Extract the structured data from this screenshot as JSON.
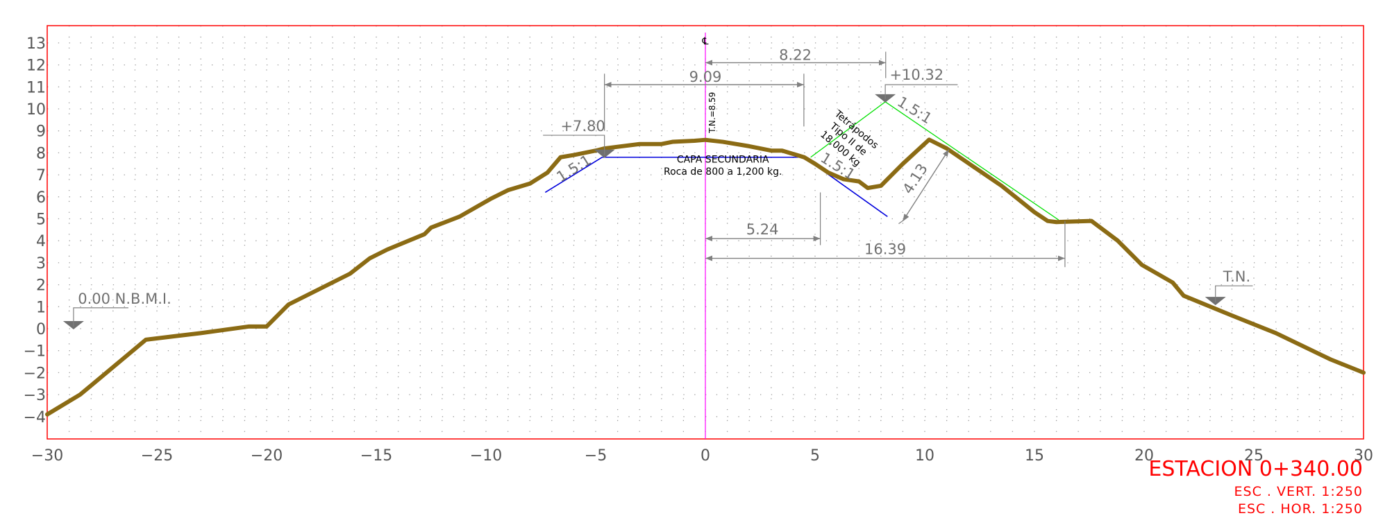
{
  "chart_data": {
    "type": "cross-section",
    "xlim": [
      -30,
      30
    ],
    "ylim": [
      -5,
      14
    ],
    "x_ticks": [
      "−30",
      "−25",
      "−20",
      "−15",
      "−10",
      "−5",
      "0",
      "5",
      "10",
      "15",
      "20",
      "25",
      "30"
    ],
    "y_ticks": [
      "13",
      "12",
      "11",
      "10",
      "9",
      "8",
      "7",
      "6",
      "5",
      "4",
      "3",
      "2",
      "1",
      "0",
      "−1",
      "−2",
      "−3",
      "−4"
    ],
    "y_tick_values": [
      13,
      12,
      11,
      10,
      9,
      8,
      7,
      6,
      5,
      4,
      3,
      2,
      1,
      0,
      -1,
      -2,
      -3,
      -4
    ],
    "grid": "dotted",
    "terrain": [
      [
        -30,
        -3.9
      ],
      [
        -28.5,
        -3.0
      ],
      [
        -25.5,
        -0.5
      ],
      [
        -23,
        -0.2
      ],
      [
        -20.8,
        0.1
      ],
      [
        -20,
        0.1
      ],
      [
        -19,
        1.1
      ],
      [
        -16.2,
        2.5
      ],
      [
        -15.3,
        3.2
      ],
      [
        -14.5,
        3.6
      ],
      [
        -12.8,
        4.3
      ],
      [
        -12.5,
        4.6
      ],
      [
        -11.2,
        5.1
      ],
      [
        -9.8,
        5.9
      ],
      [
        -9,
        6.3
      ],
      [
        -8,
        6.6
      ],
      [
        -7.2,
        7.1
      ],
      [
        -6.6,
        7.8
      ],
      [
        -6,
        7.9
      ],
      [
        -5,
        8.1
      ],
      [
        -4.6,
        8.2
      ],
      [
        -3,
        8.4
      ],
      [
        -2,
        8.4
      ],
      [
        -1.5,
        8.5
      ],
      [
        -0.5,
        8.55
      ],
      [
        0,
        8.59
      ],
      [
        0.8,
        8.5
      ],
      [
        2,
        8.3
      ],
      [
        3,
        8.1
      ],
      [
        3.5,
        8.1
      ],
      [
        4.5,
        7.8
      ],
      [
        5,
        7.5
      ],
      [
        5.6,
        7.1
      ],
      [
        6.3,
        6.8
      ],
      [
        7,
        6.7
      ],
      [
        7.4,
        6.4
      ],
      [
        8,
        6.5
      ],
      [
        9,
        7.5
      ],
      [
        10.2,
        8.6
      ],
      [
        11,
        8.2
      ],
      [
        13.5,
        6.5
      ],
      [
        15,
        5.3
      ],
      [
        15.6,
        4.9
      ],
      [
        16,
        4.85
      ],
      [
        17.6,
        4.9
      ],
      [
        18.8,
        4.0
      ],
      [
        19.9,
        2.9
      ],
      [
        21.3,
        2.1
      ],
      [
        21.8,
        1.5
      ],
      [
        24,
        0.6
      ],
      [
        26,
        -0.2
      ],
      [
        28.5,
        -1.4
      ],
      [
        30,
        -2.0
      ]
    ],
    "capa_secundaria": {
      "x": [
        -4.7,
        4.5
      ],
      "elevation": 7.8,
      "slope_ext_left": [
        -7.3,
        6.2
      ],
      "slope_ext_right": [
        8.3,
        5.1
      ]
    },
    "tetrapodos_outline": [
      [
        4.8,
        7.8
      ],
      [
        8.2,
        10.32
      ],
      [
        16.1,
        4.95
      ]
    ],
    "centerline_x": 0,
    "labels": {
      "cl_symbol": "℄",
      "tn_centerline": "T.N.=8.59",
      "elev_left": "+7.80",
      "elev_right": "+10.32",
      "nbmi": "0.00 N.B.M.I.",
      "tn": "T.N.",
      "slope_left": "1.5:1",
      "slope_mid": "1.5:1",
      "slope_right": "1.5:1",
      "capa_title": "CAPA SECUNDARIA",
      "capa_desc": "Roca de 800 a 1,200 kg.",
      "tetra_line1": "Tetrápodos",
      "tetra_line2": "Tipo II de",
      "tetra_line3": "18,000 kg"
    },
    "dimensions": [
      {
        "label": "8.22",
        "value": 8.22,
        "from": 0,
        "to": 8.22,
        "y": 12.1
      },
      {
        "label": "9.09",
        "value": 9.09,
        "from": -4.6,
        "to": 4.49,
        "y": 11.1
      },
      {
        "label": "5.24",
        "value": 5.24,
        "from": 0,
        "to": 5.24,
        "y": 4.1
      },
      {
        "label": "16.39",
        "value": 16.39,
        "from": 0,
        "to": 16.39,
        "y": 3.2
      },
      {
        "label": "4.13",
        "value": 4.13
      }
    ]
  },
  "station": {
    "title": "ESTACION 0+340.00",
    "scale_vert": "ESC . VERT. 1:250",
    "scale_hor": "ESC . HOR. 1:250"
  },
  "colors": {
    "frame": "#ff0000",
    "terrain": "#8b6b14",
    "capa": "#0000dd",
    "tetrapodos": "#00e000",
    "centerline": "#ff00ff",
    "dimension": "#808080",
    "grid": "#9a9a9a",
    "station": "#ff0000"
  }
}
